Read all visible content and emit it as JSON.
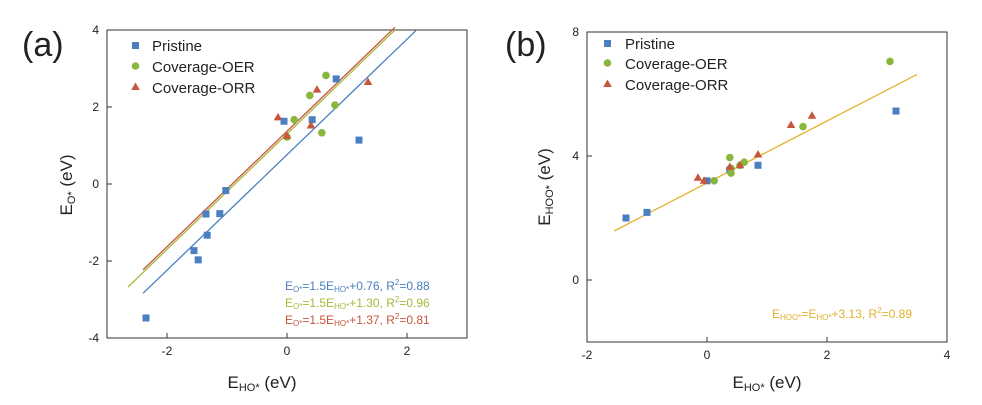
{
  "chart_data": [
    {
      "panel_label": "(a)",
      "type": "scatter",
      "xlabel_main": "E",
      "xlabel_sub": "HO*",
      "xlabel_unit": " (eV)",
      "ylabel_main": "E",
      "ylabel_sub": "O*",
      "ylabel_unit": " (eV)",
      "xlim": [
        -3,
        3
      ],
      "ylim": [
        -4,
        4
      ],
      "xticks": [
        -2,
        0,
        2
      ],
      "xtick_labels": [
        "-2",
        "0",
        "2"
      ],
      "yticks": [
        -4,
        -2,
        0,
        2,
        4
      ],
      "ytick_labels": [
        "-4",
        "-2",
        "0",
        "2",
        "4"
      ],
      "legend": [
        "Pristine",
        "Coverage-OER",
        "Coverage-ORR"
      ],
      "series": [
        {
          "name": "Pristine",
          "marker": "square",
          "color": "#4a7fc1",
          "x": [
            -2.35,
            -1.55,
            -1.48,
            -1.35,
            -1.33,
            -1.12,
            -1.02,
            -0.05,
            0.42,
            0.82,
            1.2
          ],
          "y": [
            -3.48,
            -1.73,
            -1.97,
            -0.78,
            -1.33,
            -0.77,
            -0.17,
            1.63,
            1.67,
            2.73,
            1.14
          ]
        },
        {
          "name": "Coverage-OER",
          "marker": "circle",
          "color": "#8ab63e",
          "x": [
            0.0,
            0.12,
            0.38,
            0.58,
            0.65,
            0.8
          ],
          "y": [
            1.22,
            1.67,
            2.3,
            1.33,
            2.82,
            2.05
          ]
        },
        {
          "name": "Coverage-ORR",
          "marker": "triangle",
          "color": "#c8553d",
          "x": [
            -0.15,
            0.0,
            0.4,
            0.5,
            1.35
          ],
          "y": [
            1.73,
            1.25,
            1.52,
            2.45,
            2.65
          ]
        }
      ],
      "fits": [
        {
          "series": "Pristine",
          "slope": 1.5,
          "intercept": 0.76,
          "color": "#4a7fc1",
          "x_range": [
            -2.4,
            2.15
          ],
          "label_main": "E",
          "label_sub": "O*",
          "label_eq": "=1.5E",
          "label_sub2": "HO*",
          "label_rest": "+0.76, R",
          "label_sup": "2",
          "label_end": "=0.88"
        },
        {
          "series": "Coverage-OER",
          "slope": 1.5,
          "intercept": 1.3,
          "color": "#a8b83a",
          "x_range": [
            -2.65,
            1.8
          ],
          "label_main": "E",
          "label_sub": "O*",
          "label_eq": "=1.5E",
          "label_sub2": "HO*",
          "label_rest": "+1.30, R",
          "label_sup": "2",
          "label_end": "=0.96"
        },
        {
          "series": "Coverage-ORR",
          "slope": 1.5,
          "intercept": 1.37,
          "color": "#c8553d",
          "x_range": [
            -2.4,
            1.8
          ],
          "label_main": "E",
          "label_sub": "O*",
          "label_eq": "=1.5E",
          "label_sub2": "HO*",
          "label_rest": "+1.37, R",
          "label_sup": "2",
          "label_end": "=0.81"
        }
      ]
    },
    {
      "panel_label": "(b)",
      "type": "scatter",
      "xlabel_main": "E",
      "xlabel_sub": "HO*",
      "xlabel_unit": " (eV)",
      "ylabel_main": "E",
      "ylabel_sub": "HOO*",
      "ylabel_unit": " (eV)",
      "xlim": [
        -2,
        4
      ],
      "ylim": [
        -2,
        8
      ],
      "xticks": [
        -2,
        0,
        2,
        4
      ],
      "xtick_labels": [
        "-2",
        "0",
        "2",
        "4"
      ],
      "yticks": [
        0,
        4,
        8
      ],
      "ytick_labels": [
        "0",
        "4",
        "8"
      ],
      "legend": [
        "Pristine",
        "Coverage-OER",
        "Coverage-ORR"
      ],
      "series": [
        {
          "name": "Pristine",
          "marker": "square",
          "color": "#4a7fc1",
          "x": [
            -1.35,
            -1.0,
            0.0,
            0.38,
            0.85,
            3.15
          ],
          "y": [
            2.0,
            2.18,
            3.2,
            3.55,
            3.7,
            5.45
          ]
        },
        {
          "name": "Coverage-OER",
          "marker": "circle",
          "color": "#8ab63e",
          "x": [
            0.12,
            0.38,
            0.4,
            0.4,
            0.55,
            0.62,
            1.6,
            3.05
          ],
          "y": [
            3.2,
            3.95,
            3.45,
            3.6,
            3.7,
            3.8,
            4.95,
            7.05
          ]
        },
        {
          "name": "Coverage-ORR",
          "marker": "triangle",
          "color": "#c8553d",
          "x": [
            -0.15,
            -0.05,
            0.38,
            0.55,
            0.85,
            1.4,
            1.75
          ],
          "y": [
            3.3,
            3.2,
            3.65,
            3.7,
            4.05,
            5.0,
            5.3
          ]
        }
      ],
      "fits": [
        {
          "series": "all",
          "slope": 1.0,
          "intercept": 3.13,
          "color": "#e3b02a",
          "x_range": [
            -1.55,
            3.5
          ],
          "label_main": "E",
          "label_sub": "HOO*",
          "label_eq": "=E",
          "label_sub2": "HO*",
          "label_rest": "+3.13, R",
          "label_sup": "2",
          "label_end": "=0.89"
        }
      ]
    }
  ]
}
